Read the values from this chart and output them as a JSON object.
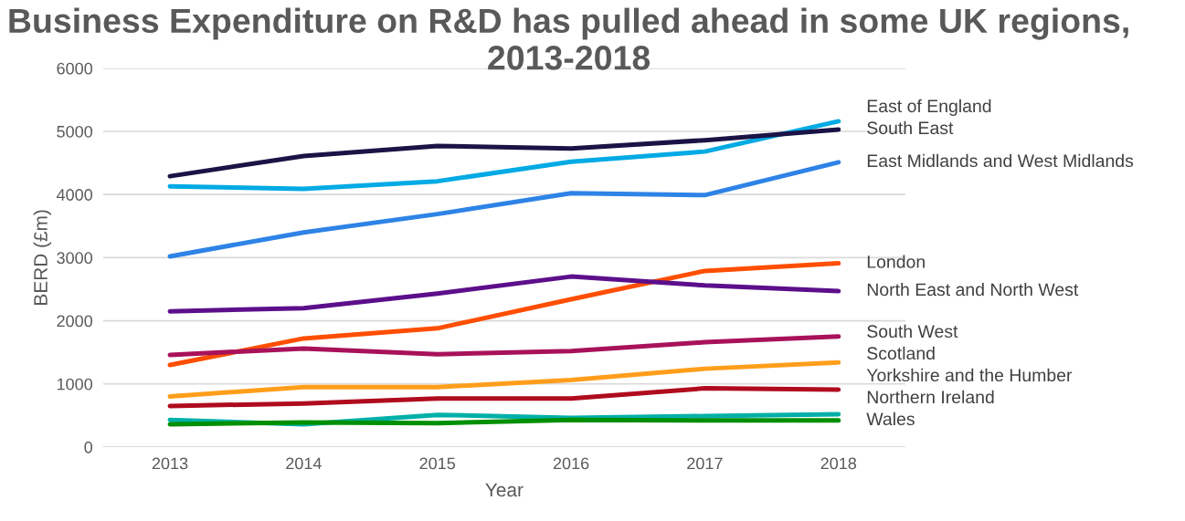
{
  "chart_data": {
    "type": "line",
    "title": "Business Expenditure on R&D has pulled ahead in some UK regions, 2013-2018",
    "xlabel": "Year",
    "ylabel": "BERD (£m)",
    "categories": [
      "2013",
      "2014",
      "2015",
      "2016",
      "2017",
      "2018"
    ],
    "ylim": [
      0,
      6000
    ],
    "yticks": [
      0,
      1000,
      2000,
      3000,
      4000,
      5000,
      6000
    ],
    "grid": "y",
    "legend": false,
    "marker": "none",
    "line_style": "solid",
    "series": [
      {
        "name": "East of England",
        "color": "#00aae4",
        "values": [
          4130,
          4090,
          4210,
          4520,
          4680,
          5160
        ]
      },
      {
        "name": "South East",
        "color": "#1a1446",
        "values": [
          4290,
          4610,
          4770,
          4730,
          4860,
          5030
        ]
      },
      {
        "name": "East Midlands and West Midlands",
        "color": "#2e83e6",
        "values": [
          3020,
          3400,
          3690,
          4020,
          3990,
          4510
        ]
      },
      {
        "name": "London",
        "color": "#ff4e00",
        "values": [
          1300,
          1720,
          1880,
          2340,
          2790,
          2910
        ]
      },
      {
        "name": "North East and North West",
        "color": "#5c0f8b",
        "values": [
          2150,
          2200,
          2430,
          2700,
          2560,
          2470
        ]
      },
      {
        "name": "South West",
        "color": "#a8125a",
        "values": [
          1460,
          1560,
          1470,
          1520,
          1660,
          1750
        ]
      },
      {
        "name": "Scotland",
        "color": "#ff9e1b",
        "values": [
          800,
          950,
          950,
          1060,
          1240,
          1340
        ]
      },
      {
        "name": "Yorkshire and the Humber",
        "color": "#b00b1e",
        "values": [
          650,
          690,
          770,
          770,
          930,
          910
        ]
      },
      {
        "name": "Northern Ireland",
        "color": "#00b0a8",
        "values": [
          430,
          360,
          510,
          460,
          490,
          520
        ]
      },
      {
        "name": "Wales",
        "color": "#008f00",
        "values": [
          360,
          390,
          380,
          430,
          420,
          420
        ]
      }
    ]
  }
}
